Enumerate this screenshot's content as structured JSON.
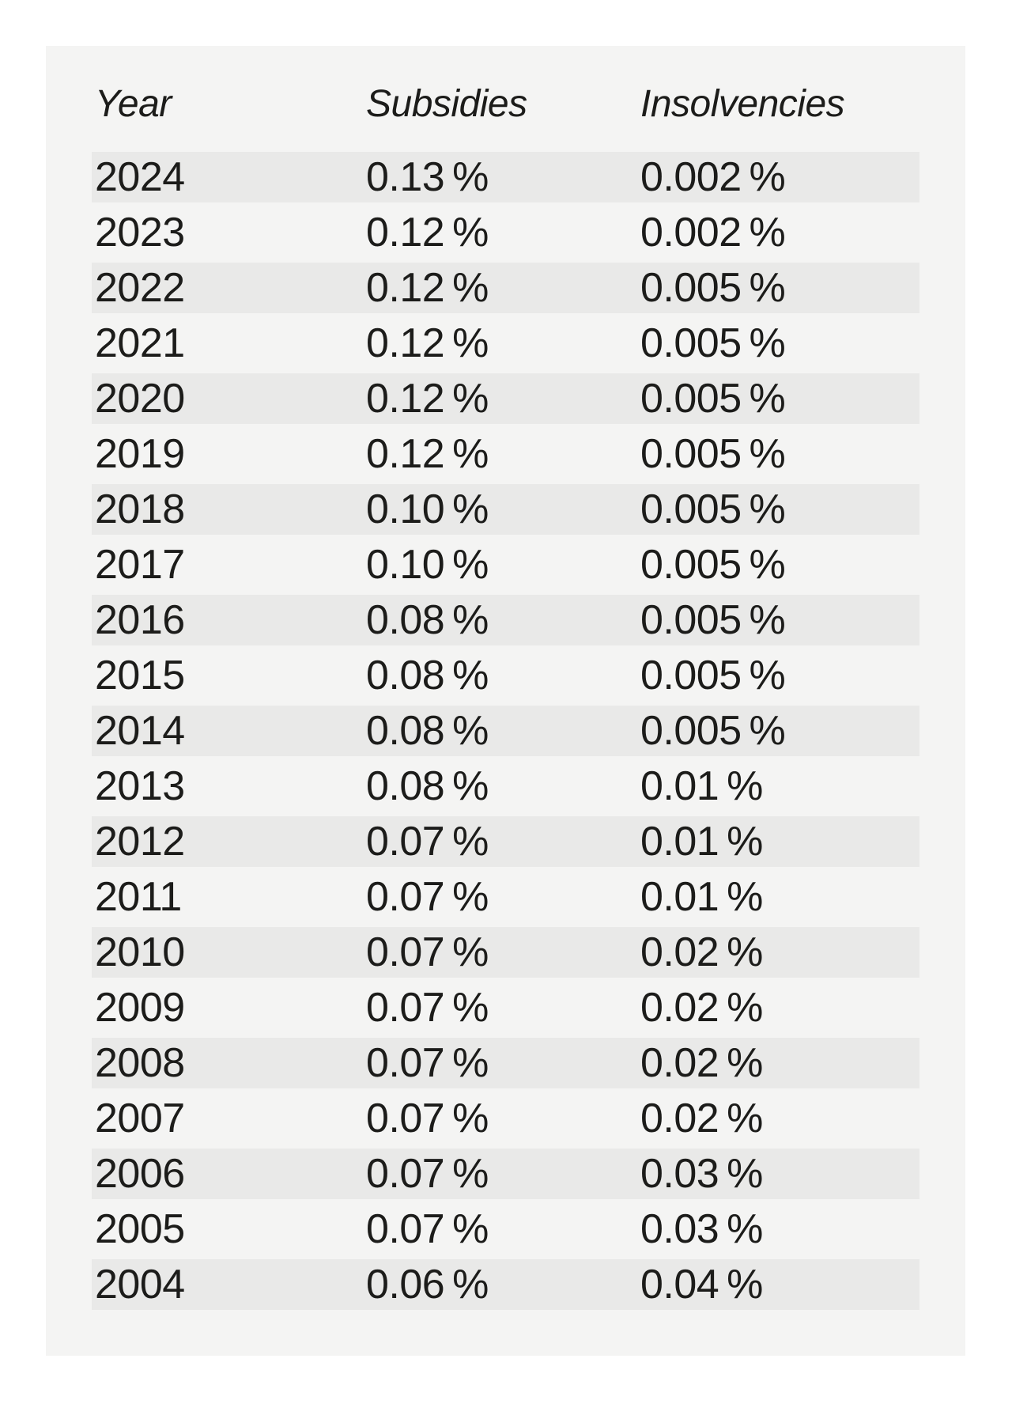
{
  "chart_data": {
    "type": "table",
    "title": "",
    "columns": [
      "Year",
      "Subsidies",
      "Insolvencies"
    ],
    "rows": [
      {
        "year": "2024",
        "subsidies": "0.13 %",
        "insolvencies": "0.002 %"
      },
      {
        "year": "2023",
        "subsidies": "0.12 %",
        "insolvencies": "0.002 %"
      },
      {
        "year": "2022",
        "subsidies": "0.12 %",
        "insolvencies": "0.005 %"
      },
      {
        "year": "2021",
        "subsidies": "0.12 %",
        "insolvencies": "0.005 %"
      },
      {
        "year": "2020",
        "subsidies": "0.12 %",
        "insolvencies": "0.005 %"
      },
      {
        "year": "2019",
        "subsidies": "0.12 %",
        "insolvencies": "0.005 %"
      },
      {
        "year": "2018",
        "subsidies": "0.10 %",
        "insolvencies": "0.005 %"
      },
      {
        "year": "2017",
        "subsidies": "0.10 %",
        "insolvencies": "0.005 %"
      },
      {
        "year": "2016",
        "subsidies": "0.08 %",
        "insolvencies": "0.005 %"
      },
      {
        "year": "2015",
        "subsidies": "0.08 %",
        "insolvencies": "0.005 %"
      },
      {
        "year": "2014",
        "subsidies": "0.08 %",
        "insolvencies": "0.005 %"
      },
      {
        "year": "2013",
        "subsidies": "0.08 %",
        "insolvencies": "0.01 %"
      },
      {
        "year": "2012",
        "subsidies": "0.07 %",
        "insolvencies": "0.01 %"
      },
      {
        "year": "2011",
        "subsidies": "0.07 %",
        "insolvencies": "0.01 %"
      },
      {
        "year": "2010",
        "subsidies": "0.07 %",
        "insolvencies": "0.02 %"
      },
      {
        "year": "2009",
        "subsidies": "0.07 %",
        "insolvencies": "0.02 %"
      },
      {
        "year": "2008",
        "subsidies": "0.07 %",
        "insolvencies": "0.02 %"
      },
      {
        "year": "2007",
        "subsidies": "0.07 %",
        "insolvencies": "0.02 %"
      },
      {
        "year": "2006",
        "subsidies": "0.07 %",
        "insolvencies": "0.03 %"
      },
      {
        "year": "2005",
        "subsidies": "0.07 %",
        "insolvencies": "0.03 %"
      },
      {
        "year": "2004",
        "subsidies": "0.06 %",
        "insolvencies": "0.04 %"
      }
    ],
    "layout": {
      "striped_rows": "first-row-striped-then-alternating",
      "header_style": "italic",
      "legend": "none",
      "grid": "off"
    }
  },
  "colors": {
    "page_bg": "#ffffff",
    "card_bg": "#f4f4f3",
    "row_stripe": "#e9e9e8",
    "text": "#1c1c1a"
  }
}
